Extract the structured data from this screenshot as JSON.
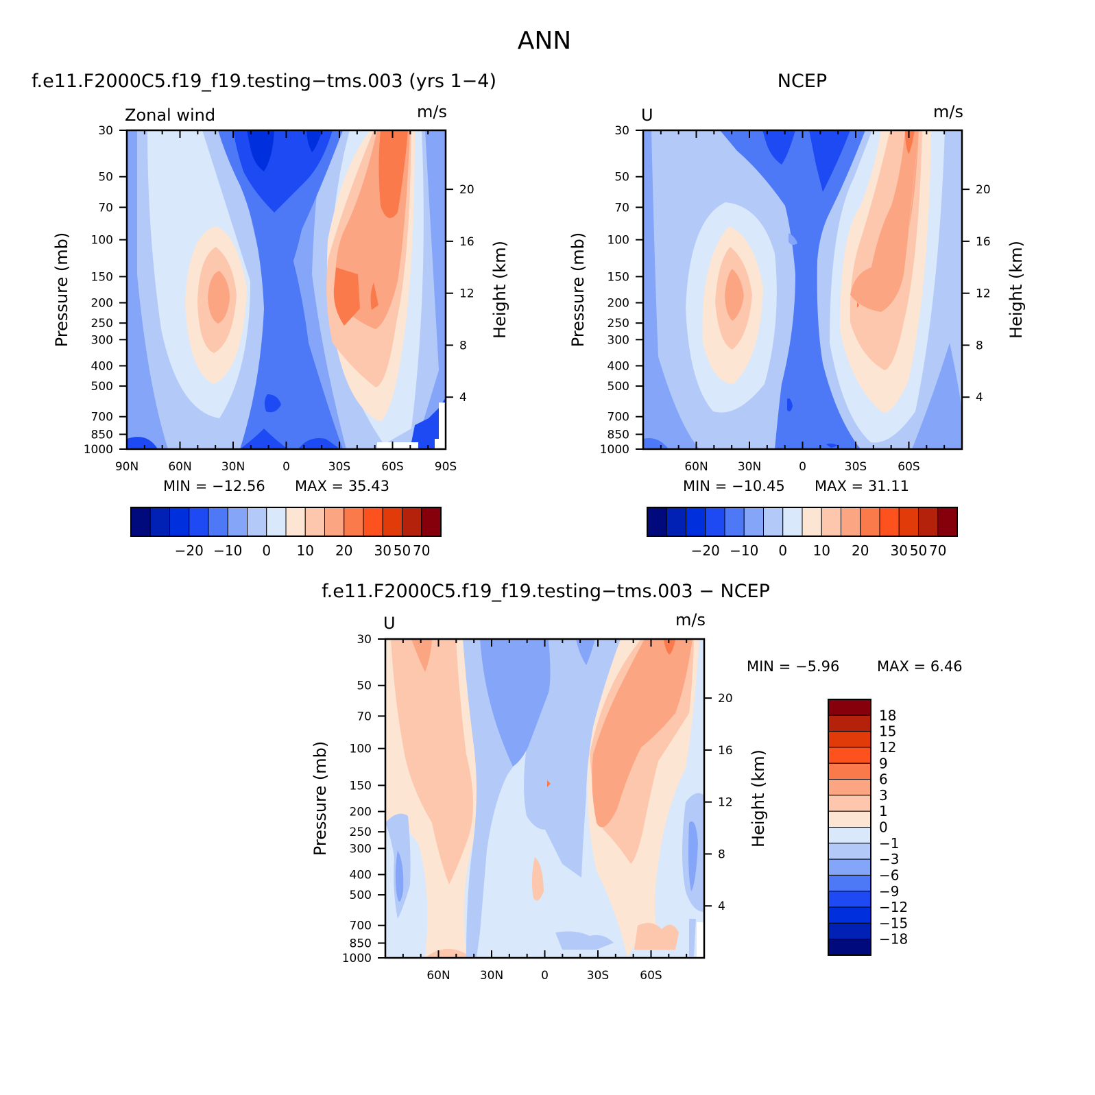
{
  "figure": {
    "title": "ANN"
  },
  "chart_data": [
    {
      "type": "heatmap",
      "subtitle": "f.e11.F2000C5.f19_f19.testing−tms.003 (yrs 1−4)",
      "label_left": "Zonal wind",
      "label_right": "m/s",
      "ylabel": "Pressure (mb)",
      "ylabel_right": "Height (km)",
      "x_ticks": [
        "90N",
        "60N",
        "30N",
        "0",
        "30S",
        "60S",
        "90S"
      ],
      "xlim": [
        90,
        -90
      ],
      "y_ticks": [
        30,
        50,
        70,
        100,
        150,
        200,
        250,
        300,
        400,
        500,
        700,
        850,
        1000
      ],
      "ylim": [
        30,
        1000
      ],
      "y_scale": "log",
      "height_ticks": [
        4,
        8,
        12,
        16,
        20
      ],
      "min_text": "MIN = −12.56",
      "max_text": "MAX = 35.43",
      "colorbar": {
        "orientation": "horizontal",
        "tick_labels": [
          "−20",
          "−10",
          "0",
          "10",
          "20",
          "30",
          "50",
          "70"
        ],
        "colors": [
          "#000a7d",
          "#0021b3",
          "#0030dd",
          "#1d4af2",
          "#4d79f7",
          "#85a6f8",
          "#b3caf9",
          "#d9e8fb",
          "#fde5d3",
          "#fcc7ad",
          "#fba583",
          "#fb7a4c",
          "#fd521d",
          "#e23b0a",
          "#b5220c",
          "#85000a"
        ]
      }
    },
    {
      "type": "heatmap",
      "subtitle": "NCEP",
      "label_left": "U",
      "label_right": "m/s",
      "ylabel": "Pressure (mb)",
      "ylabel_right": "Height (km)",
      "x_ticks": [
        "60N",
        "30N",
        "0",
        "30S",
        "60S"
      ],
      "xlim": [
        90,
        -90
      ],
      "y_ticks": [
        30,
        50,
        70,
        100,
        150,
        200,
        250,
        300,
        400,
        500,
        700,
        850,
        1000
      ],
      "ylim": [
        30,
        1000
      ],
      "y_scale": "log",
      "height_ticks": [
        4,
        8,
        12,
        16,
        20
      ],
      "min_text": "MIN = −10.45",
      "max_text": "MAX = 31.11",
      "colorbar": {
        "orientation": "horizontal",
        "tick_labels": [
          "−20",
          "−10",
          "0",
          "10",
          "20",
          "30",
          "50",
          "70"
        ],
        "colors": [
          "#000a7d",
          "#0021b3",
          "#0030dd",
          "#1d4af2",
          "#4d79f7",
          "#85a6f8",
          "#b3caf9",
          "#d9e8fb",
          "#fde5d3",
          "#fcc7ad",
          "#fba583",
          "#fb7a4c",
          "#fd521d",
          "#e23b0a",
          "#b5220c",
          "#85000a"
        ]
      }
    },
    {
      "type": "heatmap",
      "subtitle": "f.e11.F2000C5.f19_f19.testing−tms.003 − NCEP",
      "label_left": "U",
      "label_right": "m/s",
      "ylabel": "Pressure (mb)",
      "ylabel_right": "Height (km)",
      "x_ticks": [
        "60N",
        "30N",
        "0",
        "30S",
        "60S"
      ],
      "xlim": [
        90,
        -90
      ],
      "y_ticks": [
        30,
        50,
        70,
        100,
        150,
        200,
        250,
        300,
        400,
        500,
        700,
        850,
        1000
      ],
      "ylim": [
        30,
        1000
      ],
      "y_scale": "log",
      "height_ticks": [
        4,
        8,
        12,
        16,
        20
      ],
      "min_text": "MIN = −5.96",
      "max_text": "MAX = 6.46",
      "colorbar": {
        "orientation": "vertical",
        "tick_labels": [
          "18",
          "15",
          "12",
          "9",
          "6",
          "3",
          "1",
          "0",
          "−1",
          "−3",
          "−6",
          "−9",
          "−12",
          "−15",
          "−18"
        ],
        "colors": [
          "#85000a",
          "#b5220c",
          "#e23b0a",
          "#fd521d",
          "#fb7a4c",
          "#fba583",
          "#fcc7ad",
          "#fde5d3",
          "#d9e8fb",
          "#b3caf9",
          "#85a6f8",
          "#4d79f7",
          "#1d4af2",
          "#0030dd",
          "#0021b3",
          "#000a7d"
        ]
      }
    }
  ]
}
